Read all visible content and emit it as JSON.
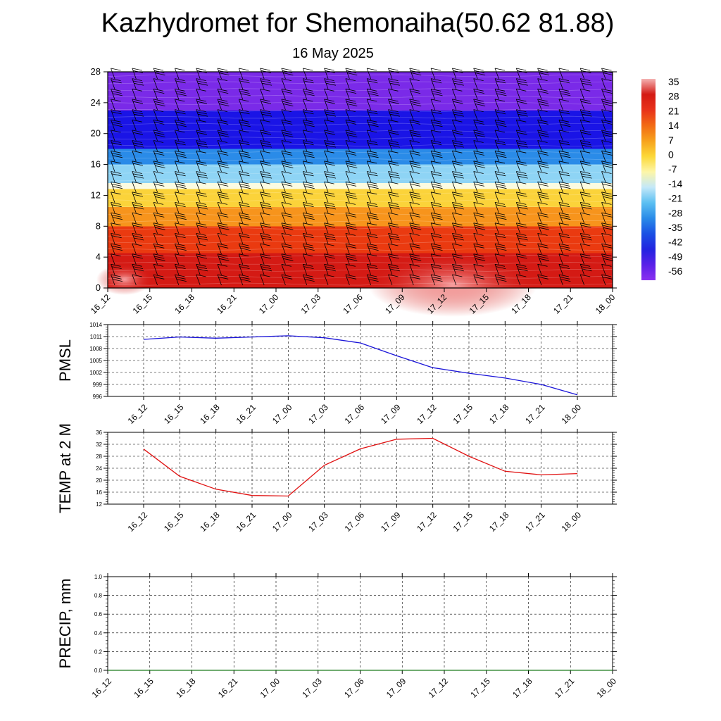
{
  "title": "Kazhydromet for Shemonaiha(50.62 81.88)",
  "subtitle": "16 May 2025",
  "chart_data": [
    {
      "type": "heatmap",
      "name": "cross-section",
      "categories": [
        "16_12",
        "16_15",
        "16_18",
        "16_21",
        "17_00",
        "17_03",
        "17_06",
        "17_09",
        "17_12",
        "17_15",
        "17_18",
        "17_21",
        "18_00"
      ],
      "yticks": [
        0,
        4,
        8,
        12,
        16,
        20,
        24,
        28
      ],
      "ylim": [
        0,
        28
      ],
      "colorbar": {
        "labels": [
          "35",
          "28",
          "21",
          "14",
          "7",
          "0",
          "-7",
          "-14",
          "-21",
          "-28",
          "-35",
          "-42",
          "-49",
          "-56"
        ],
        "range": [
          -60,
          38
        ]
      },
      "wind_barbs": true,
      "bands": [
        {
          "from": 0,
          "to": 4.5,
          "color": "#d41a14"
        },
        {
          "from": 4.5,
          "to": 8,
          "color": "#ea3a10"
        },
        {
          "from": 8,
          "to": 10.5,
          "color": "#f7941c"
        },
        {
          "from": 10.5,
          "to": 12.8,
          "color": "#fbd33a"
        },
        {
          "from": 12.8,
          "to": 13.6,
          "color": "#fbfbe0"
        },
        {
          "from": 13.6,
          "to": 16,
          "color": "#8ed4f5"
        },
        {
          "from": 16,
          "to": 18,
          "color": "#2a8be8"
        },
        {
          "from": 18,
          "to": 23,
          "color": "#1a14e6"
        },
        {
          "from": 23,
          "to": 28,
          "color": "#7a2ae8"
        }
      ]
    },
    {
      "type": "line",
      "name": "pmsl",
      "ylabel": "PMSL",
      "categories": [
        "16_12",
        "16_15",
        "16_18",
        "16_21",
        "17_00",
        "17_03",
        "17_06",
        "17_09",
        "17_12",
        "17_15",
        "17_18",
        "17_21",
        "18_00"
      ],
      "values": [
        1010.3,
        1010.9,
        1010.6,
        1010.9,
        1011.2,
        1010.7,
        1009.4,
        1006.2,
        1003.2,
        1001.8,
        1000.6,
        999.0,
        996.4
      ],
      "yticks": [
        996,
        999,
        1002,
        1005,
        1008,
        1011,
        1014
      ],
      "ylim": [
        996,
        1014
      ],
      "color": "#1a14d8"
    },
    {
      "type": "line",
      "name": "temp",
      "ylabel": "TEMP at 2 M",
      "categories": [
        "16_12",
        "16_15",
        "16_18",
        "16_21",
        "17_00",
        "17_03",
        "17_06",
        "17_09",
        "17_12",
        "17_15",
        "17_18",
        "17_21",
        "18_00"
      ],
      "values": [
        30.4,
        21.3,
        17.0,
        14.9,
        14.7,
        25.0,
        30.5,
        33.7,
        34.0,
        28.0,
        23.0,
        21.8,
        22.2
      ],
      "yticks": [
        12,
        16,
        20,
        24,
        28,
        32,
        36
      ],
      "ylim": [
        12,
        36
      ],
      "color": "#e01010"
    },
    {
      "type": "line",
      "name": "precip",
      "ylabel": "PRECIP, mm",
      "categories": [
        "16_12",
        "16_15",
        "16_18",
        "16_21",
        "17_00",
        "17_03",
        "17_06",
        "17_09",
        "17_12",
        "17_15",
        "17_18",
        "17_21",
        "18_00"
      ],
      "values": [
        0,
        0,
        0,
        0,
        0,
        0,
        0,
        0,
        0,
        0,
        0,
        0,
        0
      ],
      "yticks": [
        "0.0",
        "0.2",
        "0.4",
        "0.6",
        "0.8",
        "1.0"
      ],
      "ylim": [
        0,
        1
      ],
      "color": "#1a7a1a"
    }
  ]
}
